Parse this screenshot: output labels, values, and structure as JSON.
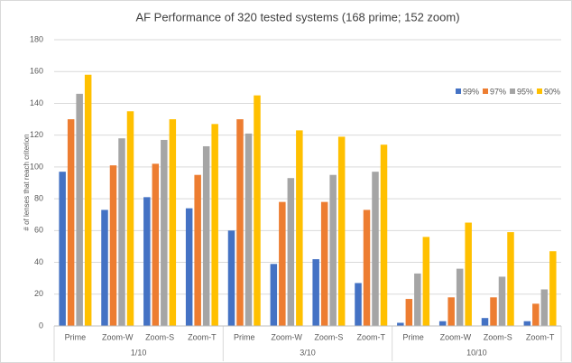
{
  "chart_data": {
    "type": "bar",
    "title": "AF Performance of 320 tested systems (168 prime; 152 zoom)",
    "y_label": "# of lenses that reach criterion",
    "groups": [
      {
        "name": "1/10",
        "categories": [
          "Prime",
          "Zoom-W",
          "Zoom-S",
          "Zoom-T"
        ]
      },
      {
        "name": "3/10",
        "categories": [
          "Prime",
          "Zoom-W",
          "Zoom-S",
          "Zoom-T"
        ]
      },
      {
        "name": "10/10",
        "categories": [
          "Prime",
          "Zoom-W",
          "Zoom-S",
          "Zoom-T"
        ]
      }
    ],
    "series": [
      {
        "name": "99%",
        "color": "#4472c4",
        "values": [
          97,
          73,
          81,
          74,
          60,
          39,
          42,
          27,
          2,
          3,
          5,
          3
        ]
      },
      {
        "name": "97%",
        "color": "#ed7d31",
        "values": [
          130,
          101,
          102,
          95,
          130,
          78,
          78,
          73,
          17,
          18,
          18,
          14
        ]
      },
      {
        "name": "95%",
        "color": "#a5a5a5",
        "values": [
          146,
          118,
          117,
          113,
          121,
          93,
          95,
          97,
          33,
          36,
          31,
          23
        ]
      },
      {
        "name": "90%",
        "color": "#ffc000",
        "values": [
          158,
          135,
          130,
          127,
          145,
          123,
          119,
          114,
          56,
          65,
          59,
          47
        ]
      }
    ],
    "ylim": [
      0,
      180
    ],
    "yticks": [
      0,
      20,
      40,
      60,
      80,
      100,
      120,
      140,
      160,
      180
    ],
    "grid": true,
    "legend": "right"
  }
}
